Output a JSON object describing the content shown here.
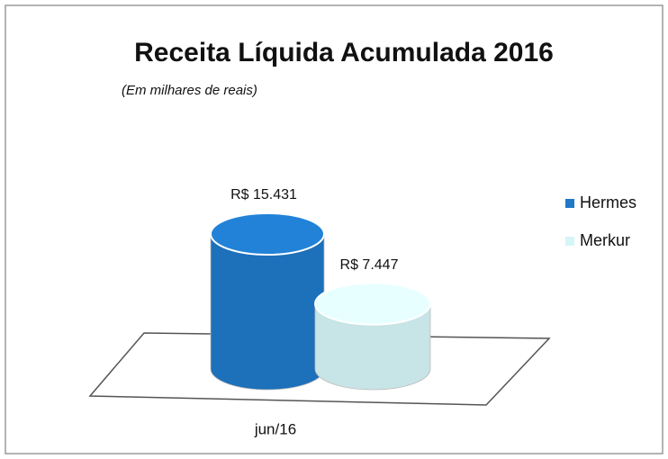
{
  "chart_data": {
    "type": "cylinder",
    "title": "Receita Líquida Acumulada 2016",
    "subtitle": "(Em milhares de reais)",
    "categories": [
      "jun/16"
    ],
    "series": [
      {
        "name": "Hermes",
        "color": "#1f78c8",
        "values": [
          15431
        ],
        "value_labels": [
          "R$ 15.431"
        ]
      },
      {
        "name": "Merkur",
        "color": "#d6f5f7",
        "values": [
          7447
        ],
        "value_labels": [
          "R$ 7.447"
        ]
      }
    ],
    "legend": "right"
  }
}
